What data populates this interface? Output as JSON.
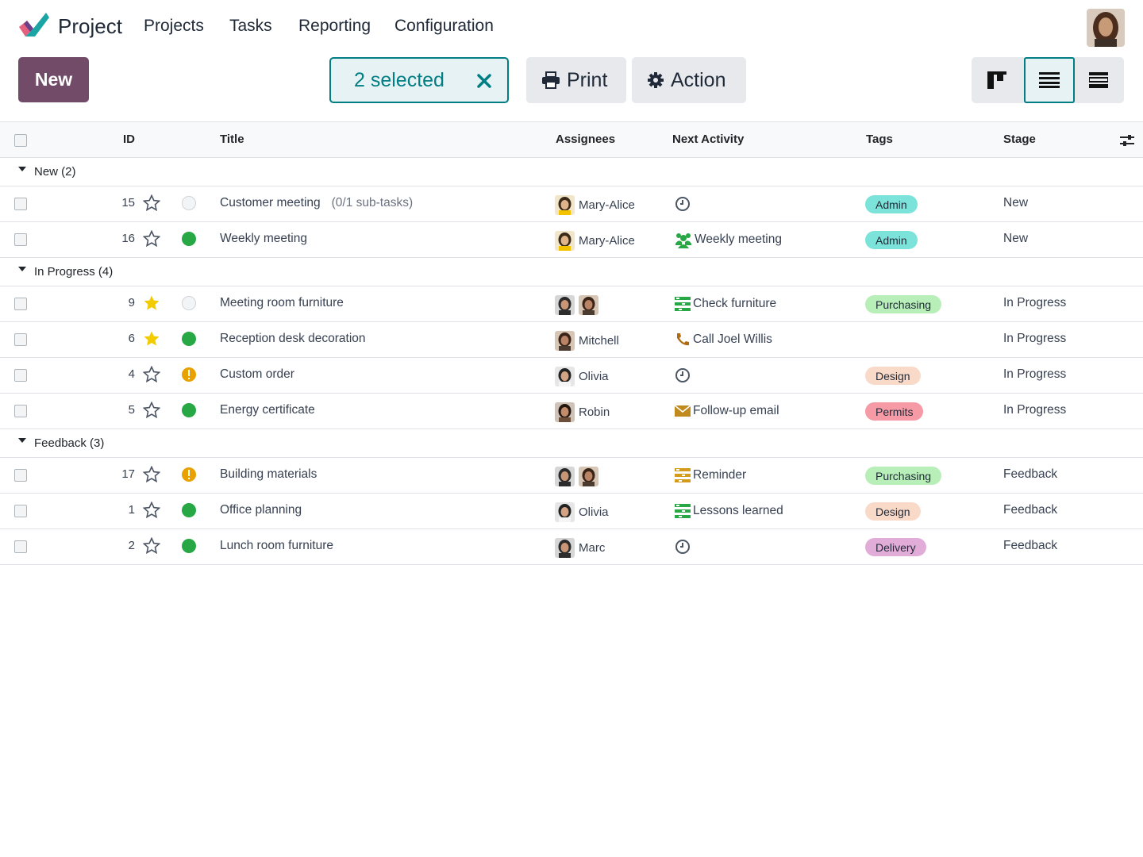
{
  "app": {
    "name": "Project",
    "menu": [
      "Projects",
      "Tasks",
      "Reporting",
      "Configuration"
    ]
  },
  "control_panel": {
    "new_label": "New",
    "selected_label": "2 selected",
    "print_label": "Print",
    "action_label": "Action",
    "views": [
      "kanban-view",
      "list-view",
      "gantt-view"
    ],
    "active_view": "list-view"
  },
  "table": {
    "columns": [
      "ID",
      "Title",
      "Assignees",
      "Next Activity",
      "Tags",
      "Stage"
    ],
    "groups": [
      {
        "label": "New (2)",
        "rows": [
          {
            "id": "15",
            "starred": false,
            "state": "grey",
            "title": "Customer meeting",
            "subtasks": "(0/1 sub-tasks)",
            "assignees": [
              "ma"
            ],
            "assignee_name": "Mary-Alice",
            "activity_icon": "clock-icon",
            "activity": "",
            "tag": "Admin",
            "tag_color": "#7be3d9",
            "stage": "New"
          },
          {
            "id": "16",
            "starred": false,
            "state": "green",
            "title": "Weekly meeting",
            "subtasks": "",
            "assignees": [
              "ma"
            ],
            "assignee_name": "Mary-Alice",
            "activity_icon": "users-icon",
            "activity": "Weekly meeting",
            "tag": "Admin",
            "tag_color": "#7be3d9",
            "stage": "New"
          }
        ]
      },
      {
        "label": "In Progress (4)",
        "rows": [
          {
            "id": "9",
            "starred": true,
            "state": "grey",
            "title": "Meeting room furniture",
            "subtasks": "",
            "assignees": [
              "marc",
              "mitchell"
            ],
            "assignee_name": "",
            "activity_icon": "tasks-icon-green",
            "activity": "Check furniture",
            "tag": "Purchasing",
            "tag_color": "#b8efb8",
            "stage": "In Progress"
          },
          {
            "id": "6",
            "starred": true,
            "state": "green",
            "title": "Reception desk decoration",
            "subtasks": "",
            "assignees": [
              "mitchell"
            ],
            "assignee_name": "Mitchell",
            "activity_icon": "phone-icon",
            "activity": "Call Joel Willis",
            "tag": "",
            "tag_color": "",
            "stage": "In Progress"
          },
          {
            "id": "4",
            "starred": false,
            "state": "orange",
            "title": "Custom order",
            "subtasks": "",
            "assignees": [
              "olivia"
            ],
            "assignee_name": "Olivia",
            "activity_icon": "clock-icon",
            "activity": "",
            "tag": "Design",
            "tag_color": "#f9d9c8",
            "stage": "In Progress"
          },
          {
            "id": "5",
            "starred": false,
            "state": "green",
            "title": "Energy certificate",
            "subtasks": "",
            "assignees": [
              "robin"
            ],
            "assignee_name": "Robin",
            "activity_icon": "envelope-icon",
            "activity": "Follow-up email",
            "tag": "Permits",
            "tag_color": "#f69aa6",
            "stage": "In Progress"
          }
        ]
      },
      {
        "label": "Feedback (3)",
        "rows": [
          {
            "id": "17",
            "starred": false,
            "state": "orange",
            "title": "Building materials",
            "subtasks": "",
            "assignees": [
              "marc",
              "mitchell"
            ],
            "assignee_name": "",
            "activity_icon": "tasks-icon-orange",
            "activity": "Reminder",
            "tag": "Purchasing",
            "tag_color": "#b8efb8",
            "stage": "Feedback"
          },
          {
            "id": "1",
            "starred": false,
            "state": "green",
            "title": "Office planning",
            "subtasks": "",
            "assignees": [
              "olivia"
            ],
            "assignee_name": "Olivia",
            "activity_icon": "tasks-icon-green",
            "activity": "Lessons learned",
            "tag": "Design",
            "tag_color": "#f9d9c8",
            "stage": "Feedback"
          },
          {
            "id": "2",
            "starred": false,
            "state": "green",
            "title": "Lunch room furniture",
            "subtasks": "",
            "assignees": [
              "marc"
            ],
            "assignee_name": "Marc",
            "activity_icon": "clock-icon",
            "activity": "",
            "tag": "Delivery",
            "tag_color": "#e2acd9",
            "stage": "Feedback"
          }
        ]
      }
    ]
  },
  "colors": {
    "brand": "#714b67",
    "accent": "#017e84",
    "state_green": "#28a745",
    "state_orange": "#e7a101",
    "star_gold": "#f3cc00"
  }
}
